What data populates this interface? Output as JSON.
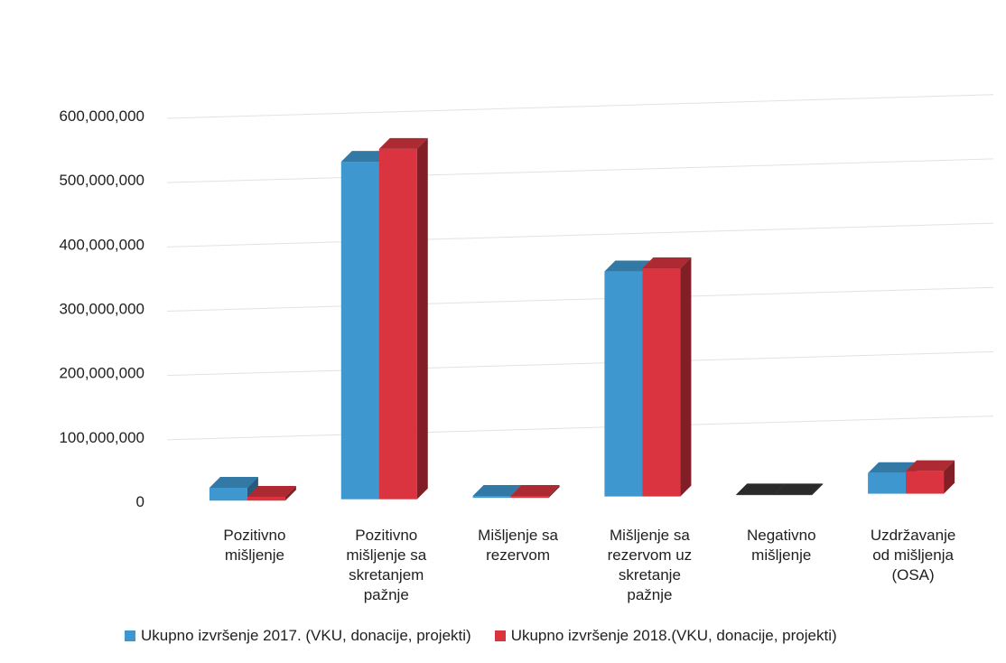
{
  "chart_data": {
    "type": "bar",
    "categories": [
      [
        "Pozitivno",
        "mišljenje"
      ],
      [
        "Pozitivno",
        "mišljenje sa",
        "skretanjem",
        "pažnje"
      ],
      [
        "Mišljenje sa",
        "rezervom"
      ],
      [
        "Mišljenje sa",
        "rezervom uz",
        "skretanje",
        "pažnje"
      ],
      [
        "Negativno",
        "mišljenje"
      ],
      [
        "Uzdržavanje",
        "od mišljenja",
        "(OSA)"
      ]
    ],
    "series": [
      {
        "name": "Ukupno izvršenje 2017. (VKU, donacije, projekti)",
        "color": "#3f97cf",
        "values": [
          20000000,
          525000000,
          3000000,
          350000000,
          1000000,
          32000000
        ]
      },
      {
        "name": "Ukupno izvršenje 2018.(VKU, donacije, projekti)",
        "color": "#d9343f",
        "values": [
          6000000,
          545000000,
          3000000,
          355000000,
          1000000,
          35000000
        ]
      }
    ],
    "y_ticks": [
      "0",
      "100,000,000",
      "200,000,000",
      "300,000,000",
      "400,000,000",
      "500,000,000",
      "600,000,000"
    ],
    "ylim": [
      0,
      600000000
    ],
    "grid": true,
    "legend_position": "bottom"
  }
}
